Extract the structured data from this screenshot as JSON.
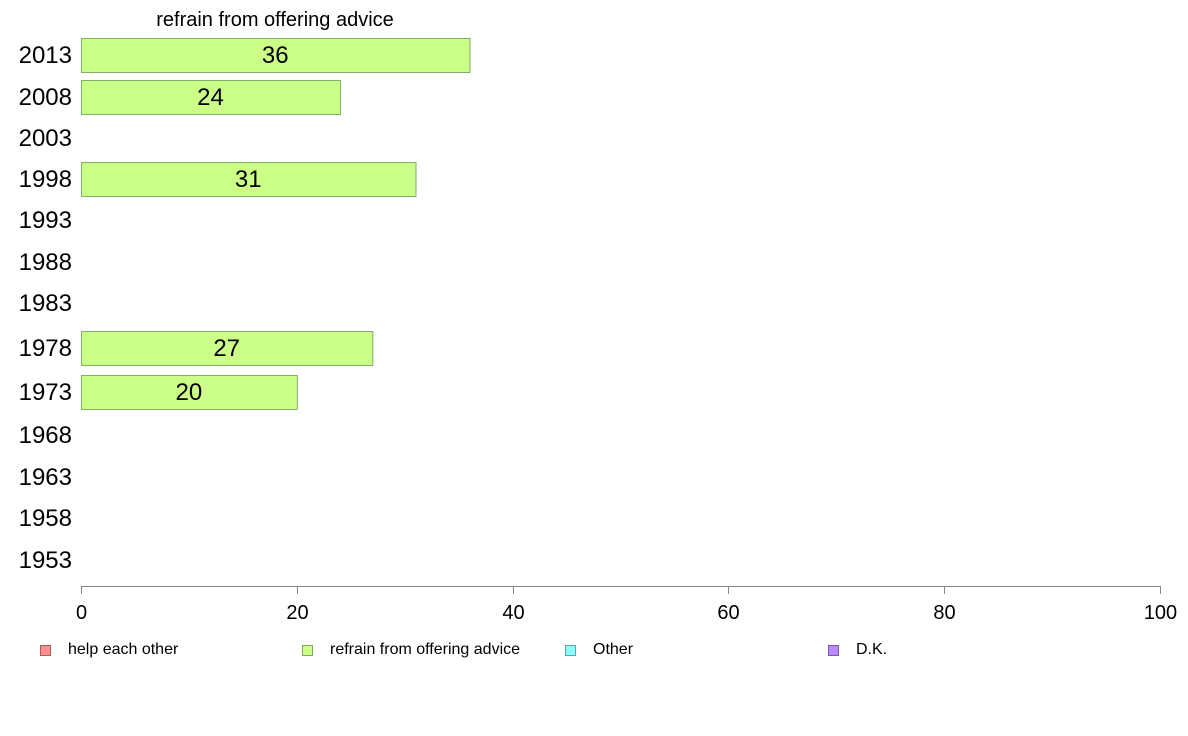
{
  "chart_data": {
    "type": "bar",
    "orientation": "horizontal",
    "title": "refrain from offering advice",
    "categories": [
      "2013",
      "2008",
      "2003",
      "1998",
      "1993",
      "1988",
      "1983",
      "1978",
      "1973",
      "1968",
      "1963",
      "1958",
      "1953"
    ],
    "series": [
      {
        "name": "refrain from offering advice",
        "color": "#ccff88",
        "values": [
          36,
          24,
          null,
          31,
          null,
          null,
          null,
          27,
          20,
          null,
          null,
          null,
          null
        ]
      }
    ],
    "xlim": [
      0,
      100
    ],
    "xticks": [
      0,
      20,
      40,
      60,
      80,
      100
    ],
    "grid": false,
    "legend_position": "bottom",
    "legend": [
      {
        "label": "help each other",
        "color": "#ff8f8f"
      },
      {
        "label": "refrain from offering advice",
        "color": "#ccff88"
      },
      {
        "label": "Other",
        "color": "#88ffff"
      },
      {
        "label": "D.K.",
        "color": "#bb88ff"
      }
    ]
  }
}
